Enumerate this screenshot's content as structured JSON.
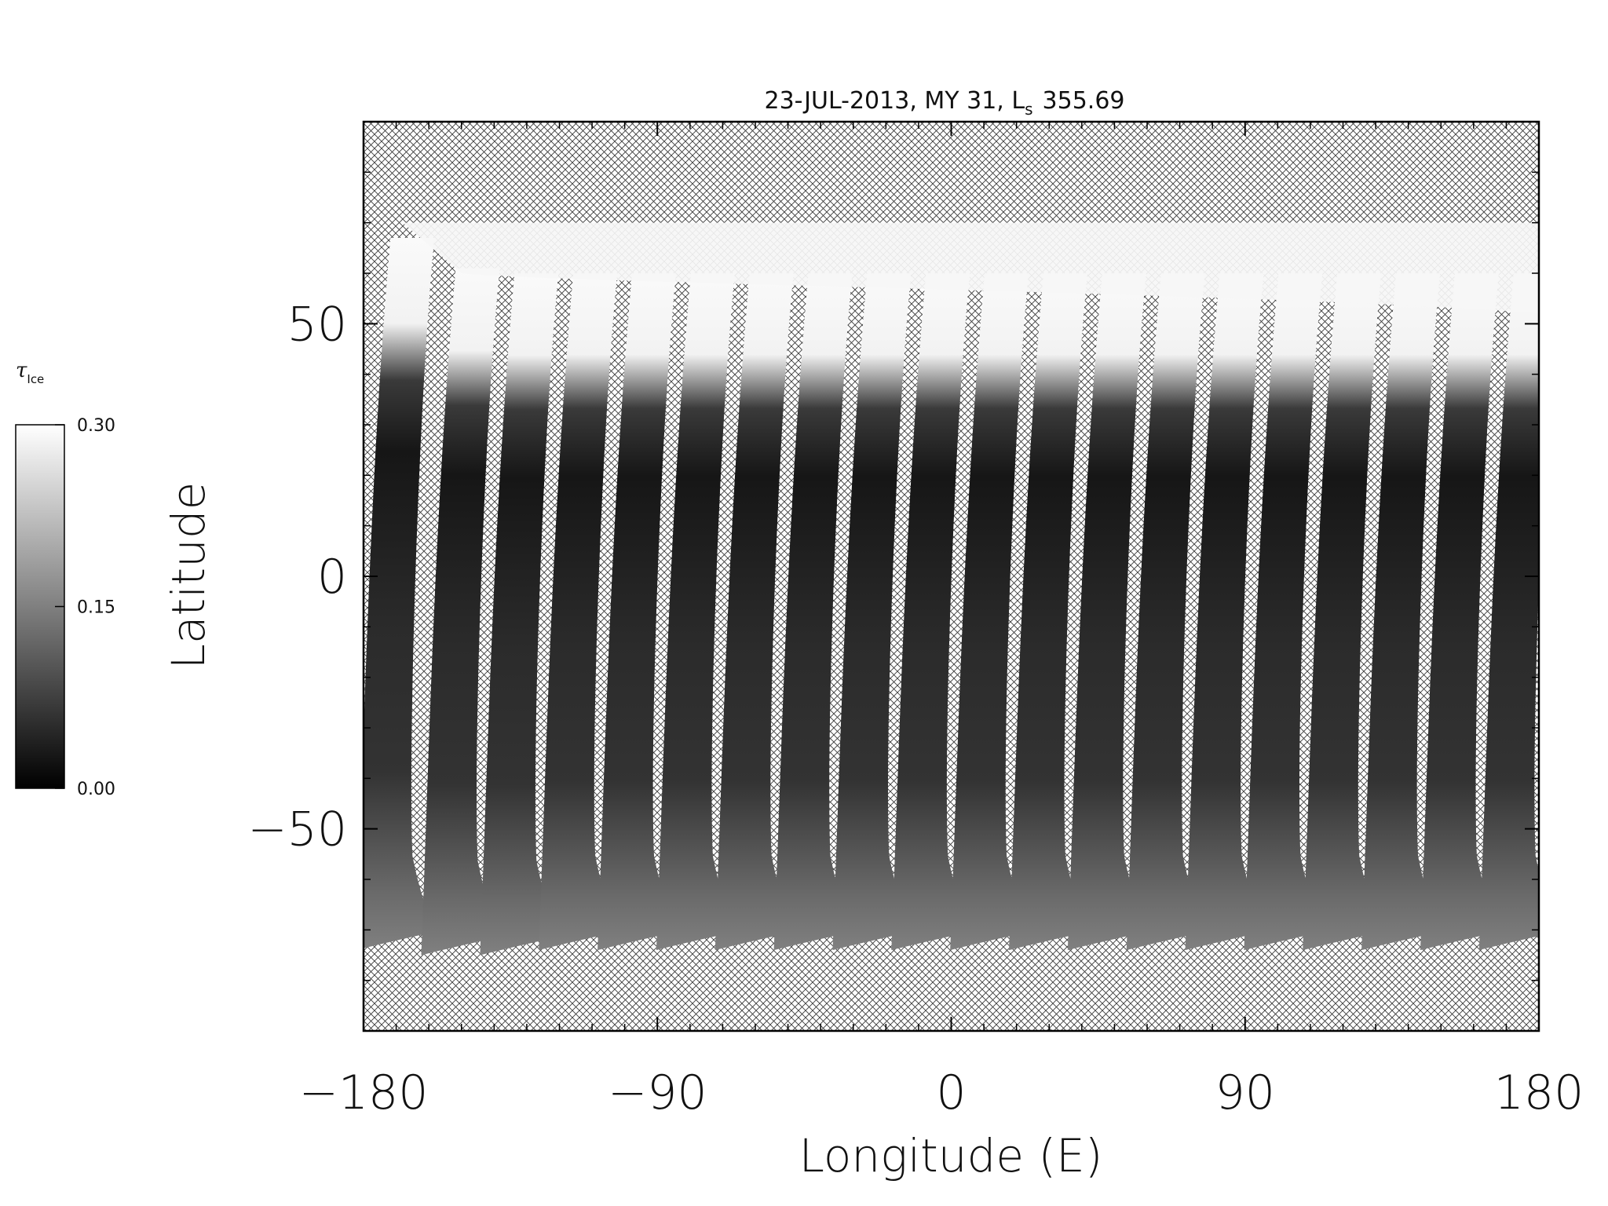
{
  "chart_data": {
    "type": "heatmap",
    "title": "23-JUL-2013, MY 31,  L",
    "title_sub": "s",
    "title_value": "355.69",
    "xlabel": "Longitude (E)",
    "ylabel": "Latitude",
    "xlim": [
      -180,
      180
    ],
    "ylim": [
      -90,
      90
    ],
    "x_ticks": [
      {
        "value": -180,
        "label": "−180"
      },
      {
        "value": -90,
        "label": "−90"
      },
      {
        "value": 0,
        "label": "0"
      },
      {
        "value": 90,
        "label": "90"
      },
      {
        "value": 180,
        "label": "180"
      }
    ],
    "y_ticks": [
      {
        "value": 50,
        "label": "50"
      },
      {
        "value": 0,
        "label": "0"
      },
      {
        "value": -50,
        "label": "−50"
      }
    ],
    "colorbar": {
      "label": "τ",
      "label_sub": "Ice",
      "range": [
        0,
        0.3
      ],
      "ticks": [
        {
          "value": 0.3,
          "label": "0.30"
        },
        {
          "value": 0.15,
          "label": "0.15"
        },
        {
          "value": 0.0,
          "label": "0.00"
        }
      ],
      "colormap": "grayscale"
    },
    "no_data_pattern": "crosshatch",
    "swaths": [
      {
        "lon": -178,
        "north_lat": 67,
        "south_lat": -74
      },
      {
        "lon": -158,
        "north_lat": 61,
        "south_lat": -75
      },
      {
        "lon": -140,
        "north_lat": 60,
        "south_lat": -75
      },
      {
        "lon": -122,
        "north_lat": 60,
        "south_lat": -74
      },
      {
        "lon": -104,
        "north_lat": 60,
        "south_lat": -74
      },
      {
        "lon": -86,
        "north_lat": 60,
        "south_lat": -74
      },
      {
        "lon": -68,
        "north_lat": 60,
        "south_lat": -74
      },
      {
        "lon": -50,
        "north_lat": 60,
        "south_lat": -74
      },
      {
        "lon": -32,
        "north_lat": 60,
        "south_lat": -74
      },
      {
        "lon": -14,
        "north_lat": 60,
        "south_lat": -74
      },
      {
        "lon": 4,
        "north_lat": 60,
        "south_lat": -74
      },
      {
        "lon": 22,
        "north_lat": 60,
        "south_lat": -74
      },
      {
        "lon": 40,
        "north_lat": 60,
        "south_lat": -74
      },
      {
        "lon": 58,
        "north_lat": 60,
        "south_lat": -74
      },
      {
        "lon": 76,
        "north_lat": 60,
        "south_lat": -74
      },
      {
        "lon": 94,
        "north_lat": 60,
        "south_lat": -74
      },
      {
        "lon": 112,
        "north_lat": 60,
        "south_lat": -74
      },
      {
        "lon": 130,
        "north_lat": 60,
        "south_lat": -74
      },
      {
        "lon": 148,
        "north_lat": 60,
        "south_lat": -74
      },
      {
        "lon": 166,
        "north_lat": 60,
        "south_lat": -74
      }
    ]
  }
}
